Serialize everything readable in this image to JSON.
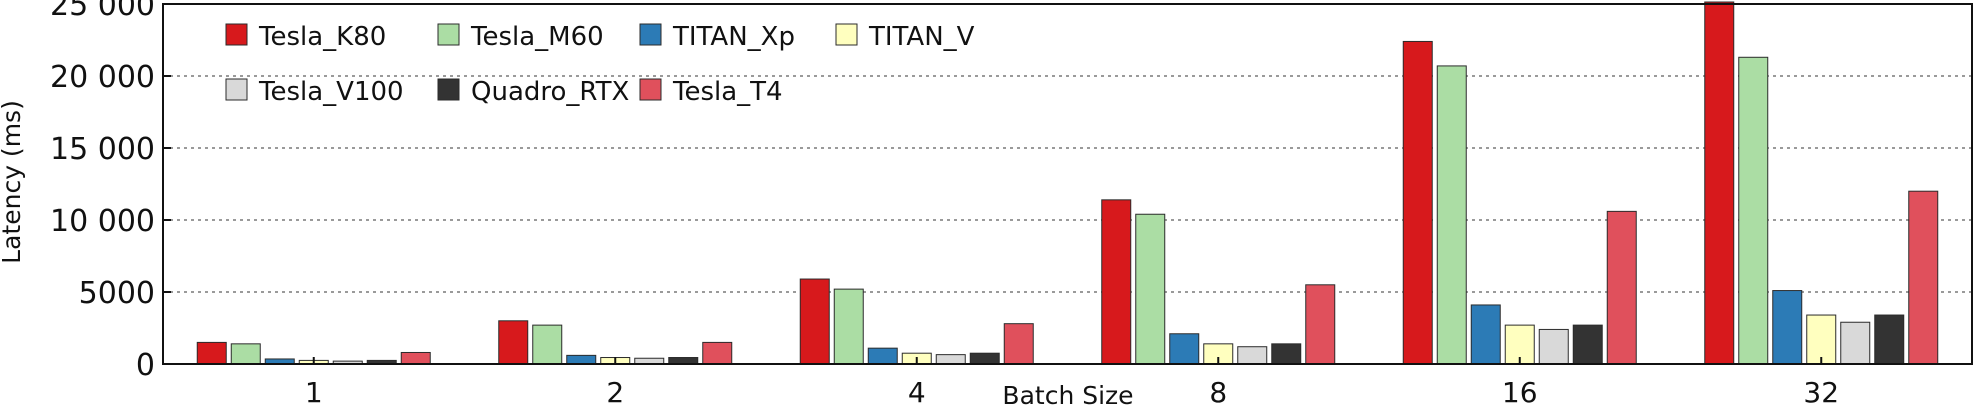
{
  "chart_data": {
    "type": "bar",
    "title": "",
    "xlabel": "Batch Size",
    "ylabel": "Latency (ms)",
    "ylim": [
      0,
      25000
    ],
    "yticks": [
      0,
      5000,
      10000,
      15000,
      20000,
      25000
    ],
    "ytick_labels": [
      "0",
      "5000",
      "10 000",
      "15 000",
      "20 000",
      "25 000"
    ],
    "grid": "horizontal dotted",
    "legend_position": "top-left",
    "categories": [
      "1",
      "2",
      "4",
      "8",
      "16",
      "32"
    ],
    "series": [
      {
        "name": "Tesla_K80",
        "color": "#d7191c",
        "values": [
          1500,
          3000,
          5900,
          11400,
          22400,
          25900
        ]
      },
      {
        "name": "Tesla_M60",
        "color": "#abdda4",
        "values": [
          1400,
          2700,
          5200,
          10400,
          20700,
          21300
        ]
      },
      {
        "name": "TITAN_Xp",
        "color": "#2c7bb6",
        "values": [
          350,
          600,
          1100,
          2100,
          4100,
          5100
        ]
      },
      {
        "name": "TITAN_V",
        "color": "#ffffbf",
        "values": [
          250,
          450,
          750,
          1400,
          2700,
          3400
        ]
      },
      {
        "name": "Tesla_V100",
        "color": "#d9d9d9",
        "values": [
          200,
          400,
          650,
          1200,
          2400,
          2900
        ]
      },
      {
        "name": "Quadro_RTX",
        "color": "#333333",
        "values": [
          250,
          450,
          750,
          1400,
          2700,
          3400
        ]
      },
      {
        "name": "Tesla_T4",
        "color": "#e0505c",
        "values": [
          800,
          1500,
          2800,
          5500,
          10600,
          12000
        ]
      }
    ]
  }
}
